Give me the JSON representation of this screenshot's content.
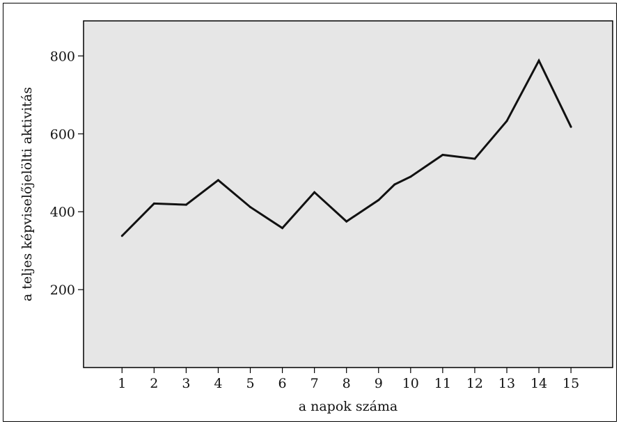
{
  "chart_data": {
    "type": "line",
    "title": "",
    "xlabel": "a napok száma",
    "ylabel": "a teljes képviselőjelölti aktivitás",
    "x": [
      1,
      2,
      3,
      4,
      5,
      6,
      7,
      8,
      9,
      9.5,
      10,
      11,
      12,
      13,
      14,
      15
    ],
    "series": [
      {
        "values": [
          338,
          421,
          418,
          481,
          412,
          358,
          450,
          375,
          430,
          470,
          490,
          546,
          536,
          633,
          788,
          618
        ]
      }
    ],
    "xticks": [
      "1",
      "2",
      "3",
      "4",
      "5",
      "6",
      "7",
      "8",
      "9",
      "10",
      "11",
      "12",
      "13",
      "14",
      "15"
    ],
    "yticks": [
      "200",
      "400",
      "600",
      "800"
    ],
    "xlim": [
      -0.2,
      16.3
    ],
    "ylim": [
      0,
      890
    ],
    "grid": false,
    "legend": "none",
    "colors": {
      "plot_background": "#e6e6e6",
      "line": "#111111",
      "axis": "#000000"
    }
  }
}
